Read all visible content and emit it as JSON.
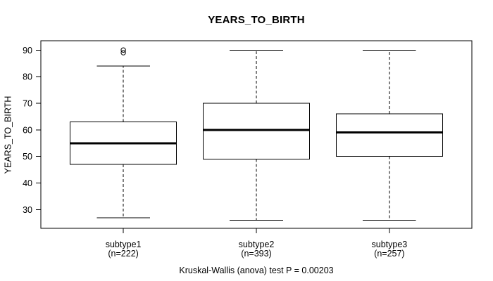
{
  "caption": "Kruskal-Wallis (anova) test P = 0.00203",
  "colors": {
    "line": "#000000",
    "background": "#ffffff",
    "box_fill": "#ffffff"
  },
  "chart_data": {
    "type": "boxplot",
    "title": "YEARS_TO_BIRTH",
    "ylabel": "YEARS_TO_BIRTH",
    "xlabel": "",
    "ylim": [
      23,
      93.5
    ],
    "yticks": [
      30,
      40,
      50,
      60,
      70,
      80,
      90
    ],
    "grid": false,
    "legend_position": "none",
    "groups": [
      {
        "label": "subtype1",
        "n": 222,
        "n_label": "(n=222)",
        "whisker_low": 27,
        "q1": 47,
        "median": 55,
        "q3": 63,
        "whisker_high": 84,
        "outliers": [
          89,
          90
        ]
      },
      {
        "label": "subtype2",
        "n": 393,
        "n_label": "(n=393)",
        "whisker_low": 26,
        "q1": 49,
        "median": 60,
        "q3": 70,
        "whisker_high": 90,
        "outliers": []
      },
      {
        "label": "subtype3",
        "n": 257,
        "n_label": "(n=257)",
        "whisker_low": 26,
        "q1": 50,
        "median": 59,
        "q3": 66,
        "whisker_high": 90,
        "outliers": []
      }
    ]
  }
}
